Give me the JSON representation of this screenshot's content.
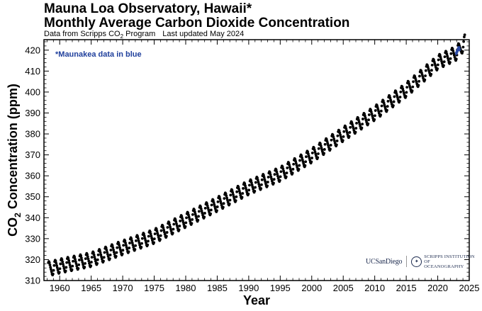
{
  "header": {
    "title_line1": "Mauna Loa Observatory, Hawaii*",
    "title_line2": "Monthly Average Carbon Dioxide Concentration",
    "subtitle_source_prefix": "Data from Scripps CO",
    "subtitle_source_sub": "2",
    "subtitle_source_suffix": " Program",
    "subtitle_updated": "Last updated May 2024"
  },
  "annotation": "*Maunakea data in blue",
  "logos": {
    "ucsd": "UCSanDiego",
    "scripps_line1": "SCRIPPS INSTITUTION OF",
    "scripps_line2": "OCEANOGRAPHY"
  },
  "colors": {
    "data": "#000000",
    "maunakea": "#2a49a6",
    "annotation_text": "#1f3f9c"
  },
  "chart_data": {
    "type": "scatter",
    "xlabel": "Year",
    "ylabel_prefix": "CO",
    "ylabel_sub": "2",
    "ylabel_suffix": " Concentration (ppm)",
    "xlim": [
      1957.5,
      2025
    ],
    "ylim": [
      310,
      425
    ],
    "x_ticks": [
      1960,
      1965,
      1970,
      1975,
      1980,
      1985,
      1990,
      1995,
      2000,
      2005,
      2010,
      2015,
      2020,
      2025
    ],
    "y_ticks": [
      310,
      320,
      330,
      340,
      350,
      360,
      370,
      380,
      390,
      400,
      410,
      420
    ],
    "grid": false,
    "series": [
      {
        "name": "Mauna Loa",
        "x": [
          1958.5,
          1960,
          1965,
          1970,
          1975,
          1980,
          1985,
          1990,
          1995,
          2000,
          2005,
          2010,
          2015,
          2020,
          2022.9,
          2023.7,
          2024.3
        ],
        "y": [
          315.7,
          316.9,
          320.0,
          325.7,
          331.1,
          338.8,
          346.4,
          354.4,
          360.8,
          369.7,
          379.9,
          389.9,
          401.0,
          414.2,
          418.5,
          421.1,
          424.0
        ],
        "seasonal_amplitude": 3.2
      },
      {
        "name": "Maunakea",
        "x": [
          2022.95,
          2023.05,
          2023.15,
          2023.25,
          2023.35,
          2023.45
        ],
        "y": [
          418.5,
          419.2,
          419.9,
          420.6,
          421.1,
          420.4
        ]
      }
    ]
  }
}
